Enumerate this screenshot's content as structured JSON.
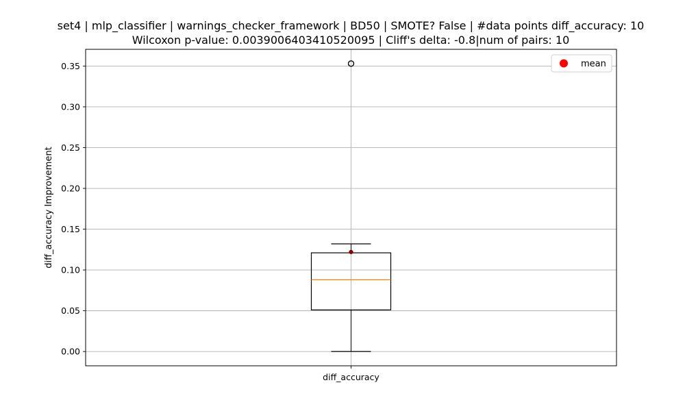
{
  "chart_data": {
    "type": "box",
    "title": "set4 | mlp_classifier | warnings_checker_framework | BD50 | SMOTE? False | #data points diff_accuracy: 10",
    "subtitle": "Wilcoxon p-value: 0.0039006403410520095 | Cliff's delta: -0.8|num of pairs: 10",
    "xlabel": "",
    "ylabel": "diff_accuracy Improvement",
    "ylim": [
      -0.0175,
      0.3705
    ],
    "yticks": [
      0.0,
      0.05,
      0.1,
      0.15,
      0.2,
      0.25,
      0.3,
      0.35
    ],
    "ytick_labels": [
      "0.00",
      "0.05",
      "0.10",
      "0.15",
      "0.20",
      "0.25",
      "0.30",
      "0.35"
    ],
    "categories": [
      "diff_accuracy"
    ],
    "boxes": [
      {
        "category": "diff_accuracy",
        "whisker_low": 0.0,
        "q1": 0.051,
        "median": 0.088,
        "q3": 0.121,
        "whisker_high": 0.132,
        "mean": 0.122,
        "outliers": [
          0.353
        ]
      }
    ],
    "grid": true,
    "legend": {
      "placement": "upper-right",
      "entries": [
        {
          "label": "mean",
          "color": "#ff0000",
          "marker": "circle"
        }
      ]
    },
    "colors": {
      "box": "#000000",
      "median": "#ff7f0e",
      "mean": "#ff0000",
      "mean_marker": "#8b0000",
      "grid": "#b0b0b0"
    }
  }
}
